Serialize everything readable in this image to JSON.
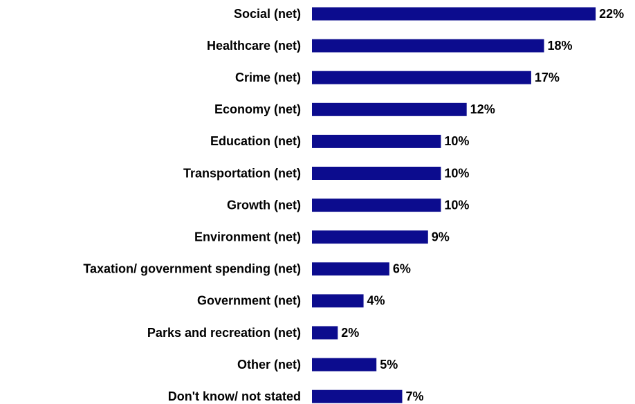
{
  "chart_data": {
    "type": "bar",
    "orientation": "horizontal",
    "categories": [
      "Social (net)",
      "Healthcare (net)",
      "Crime (net)",
      "Economy (net)",
      "Education (net)",
      "Transportation (net)",
      "Growth (net)",
      "Environment (net)",
      "Taxation/ government spending (net)",
      "Government (net)",
      "Parks and recreation (net)",
      "Other (net)",
      "Don't know/ not stated"
    ],
    "values": [
      22,
      18,
      17,
      12,
      10,
      10,
      10,
      9,
      6,
      4,
      2,
      5,
      7
    ],
    "value_labels": [
      "22%",
      "18%",
      "17%",
      "12%",
      "10%",
      "10%",
      "10%",
      "9%",
      "6%",
      "4%",
      "2%",
      "5%",
      "7%"
    ],
    "color": "#0c0c8e"
  }
}
